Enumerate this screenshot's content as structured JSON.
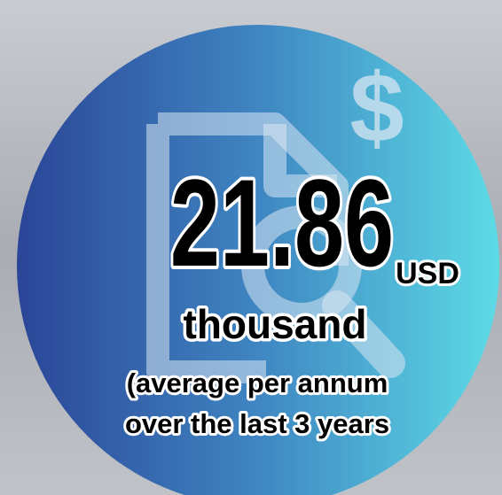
{
  "figure": "21.86",
  "unit": "USD",
  "magnitude": "thousand",
  "note_lines": [
    "(average per annum",
    "over the last 3 years"
  ]
}
